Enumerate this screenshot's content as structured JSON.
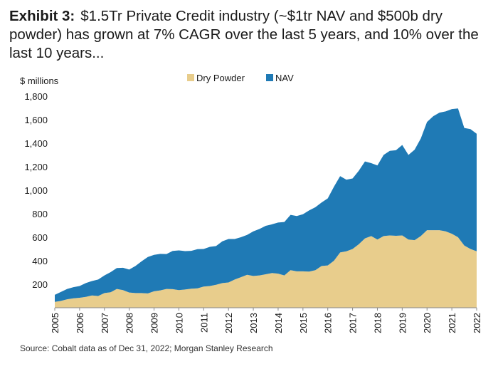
{
  "header": {
    "exhibit_label": "Exhibit 3:",
    "title_text": "$1.5Tr Private Credit industry (~$1tr NAV and $500b dry powder) has grown at 7% CAGR over the last 5 years, and 10% over the last 10 years..."
  },
  "footer": {
    "source": "Source: Cobalt data as of Dec 31, 2022; Morgan Stanley Research"
  },
  "chart_data": {
    "type": "area",
    "stacked": true,
    "ylabel": "$ millions",
    "ylim": [
      0,
      1800
    ],
    "y_ticks": [
      "200",
      "400",
      "600",
      "800",
      "1,000",
      "1,200",
      "1,400",
      "1,600",
      "1,800"
    ],
    "x_ticks": [
      "2005",
      "2006",
      "2007",
      "2008",
      "2009",
      "2010",
      "2011",
      "2012",
      "2013",
      "2014",
      "2015",
      "2016",
      "2017",
      "2018",
      "2019",
      "2020",
      "2021",
      "2022"
    ],
    "xlim": [
      2005,
      2022
    ],
    "legend_position": "top-center",
    "grid": false,
    "series": [
      {
        "name": "Dry Powder",
        "color": "#e8cd8c",
        "x": [
          2005,
          2005.25,
          2005.5,
          2005.75,
          2006,
          2006.25,
          2006.5,
          2006.75,
          2007,
          2007.25,
          2007.5,
          2007.75,
          2008,
          2008.25,
          2008.5,
          2008.75,
          2009,
          2009.25,
          2009.5,
          2009.75,
          2010,
          2010.25,
          2010.5,
          2010.75,
          2011,
          2011.25,
          2011.5,
          2011.75,
          2012,
          2012.25,
          2012.5,
          2012.75,
          2013,
          2013.25,
          2013.5,
          2013.75,
          2014,
          2014.25,
          2014.5,
          2014.75,
          2015,
          2015.25,
          2015.5,
          2015.75,
          2016,
          2016.25,
          2016.5,
          2016.75,
          2017,
          2017.25,
          2017.5,
          2017.75,
          2018,
          2018.25,
          2018.5,
          2018.75,
          2019,
          2019.25,
          2019.5,
          2019.75,
          2020,
          2020.25,
          2020.5,
          2020.75,
          2021,
          2021.25,
          2021.5,
          2021.75,
          2022
        ],
        "values": [
          50,
          58,
          72,
          80,
          85,
          92,
          105,
          100,
          125,
          132,
          160,
          150,
          130,
          125,
          125,
          122,
          140,
          148,
          160,
          158,
          150,
          155,
          162,
          165,
          180,
          185,
          195,
          210,
          215,
          240,
          260,
          280,
          270,
          275,
          285,
          295,
          290,
          275,
          320,
          310,
          310,
          308,
          320,
          355,
          360,
          400,
          470,
          480,
          500,
          540,
          590,
          610,
          580,
          610,
          615,
          612,
          615,
          580,
          575,
          610,
          660,
          660,
          660,
          650,
          630,
          600,
          530,
          500,
          480
        ]
      },
      {
        "name": "NAV",
        "color": "#1f7ab5",
        "x": [
          2005,
          2005.25,
          2005.5,
          2005.75,
          2006,
          2006.25,
          2006.5,
          2006.75,
          2007,
          2007.25,
          2007.5,
          2007.75,
          2008,
          2008.25,
          2008.5,
          2008.75,
          2009,
          2009.25,
          2009.5,
          2009.75,
          2010,
          2010.25,
          2010.5,
          2010.75,
          2011,
          2011.25,
          2011.5,
          2011.75,
          2012,
          2012.25,
          2012.5,
          2012.75,
          2013,
          2013.25,
          2013.5,
          2013.75,
          2014,
          2014.25,
          2014.5,
          2014.75,
          2015,
          2015.25,
          2015.5,
          2015.75,
          2016,
          2016.25,
          2016.5,
          2016.75,
          2017,
          2017.25,
          2017.5,
          2017.75,
          2018,
          2018.25,
          2018.5,
          2018.75,
          2019,
          2019.25,
          2019.5,
          2019.75,
          2020,
          2020.25,
          2020.5,
          2020.75,
          2021,
          2021.25,
          2021.5,
          2021.75,
          2022
        ],
        "values": [
          60,
          77,
          88,
          95,
          100,
          118,
          122,
          140,
          150,
          171,
          178,
          190,
          195,
          230,
          270,
          310,
          310,
          310,
          297,
          325,
          338,
          327,
          322,
          333,
          320,
          333,
          330,
          355,
          370,
          345,
          340,
          340,
          380,
          395,
          412,
          415,
          435,
          455,
          470,
          470,
          485,
          520,
          535,
          540,
          570,
          630,
          650,
          610,
          600,
          625,
          655,
          620,
          630,
          690,
          720,
          728,
          770,
          720,
          770,
          830,
          920,
          970,
          1000,
          1020,
          1060,
          1095,
          1000,
          1020,
          1000
        ]
      }
    ]
  }
}
